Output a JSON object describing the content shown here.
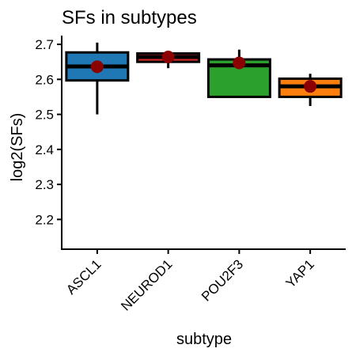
{
  "chart_data": {
    "type": "boxplot",
    "title": "SFs in subtypes",
    "xlabel": "subtype",
    "ylabel": "log2(SFs)",
    "ylim": [
      2.115,
      2.725
    ],
    "yticks": [
      2.2,
      2.3,
      2.4,
      2.5,
      2.6,
      2.7
    ],
    "grid": false,
    "legend": "none",
    "categories": [
      "ASCL1",
      "NEUROD1",
      "POU2F3",
      "YAP1"
    ],
    "boxes": [
      {
        "category": "ASCL1",
        "color": "#1f77b4",
        "min": 2.5,
        "q1": 2.597,
        "median": 2.637,
        "q3": 2.677,
        "max": 2.705,
        "mean": 2.636
      },
      {
        "category": "NEUROD1",
        "color": "#d62728",
        "min": 2.632,
        "q1": 2.65,
        "median": 2.664,
        "q3": 2.674,
        "max": 2.68,
        "mean": 2.664
      },
      {
        "category": "POU2F3",
        "color": "#2ca02c",
        "min": 2.55,
        "q1": 2.55,
        "median": 2.64,
        "q3": 2.657,
        "max": 2.685,
        "mean": 2.647
      },
      {
        "category": "YAP1",
        "color": "#ff7f0e",
        "min": 2.524,
        "q1": 2.55,
        "median": 2.58,
        "q3": 2.602,
        "max": 2.616,
        "mean": 2.58
      }
    ],
    "mean_marker_color": "#8b0000"
  }
}
